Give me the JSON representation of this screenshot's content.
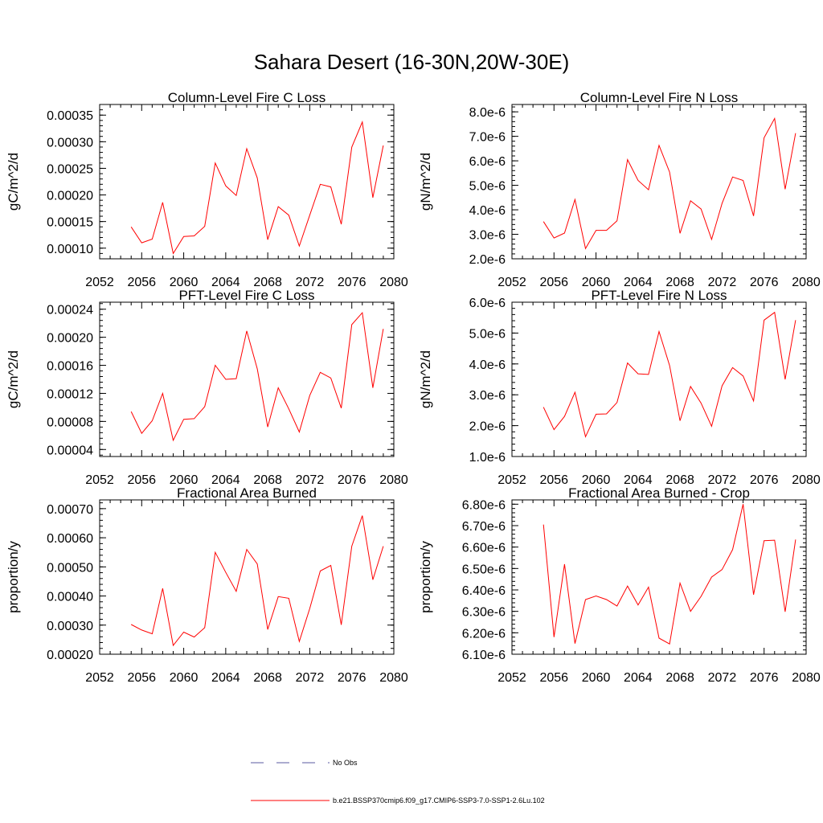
{
  "title": "Sahara Desert (16-30N,20W-30E)",
  "colors": {
    "series": "#ff0000",
    "obs": "#5a5aa0",
    "axis": "#000000"
  },
  "legend": [
    {
      "label": "No Obs",
      "style": "dashed",
      "color": "#5a5aa0"
    },
    {
      "label": "b.e21.BSSP370cmip6.f09_g17.CMIP6-SSP3-7.0-SSP1-2.6Lu.102",
      "style": "solid",
      "color": "#ff0000"
    }
  ],
  "chart_data": [
    {
      "type": "line",
      "title": "Column-Level Fire C Loss",
      "ylabel": "gC/m^2/d",
      "xlim": [
        2052,
        2080
      ],
      "ylim": [
        8e-05,
        0.00037
      ],
      "xticks": [
        "2052",
        "2056",
        "2060",
        "2064",
        "2068",
        "2072",
        "2076",
        "2080"
      ],
      "yticks": [
        {
          "v": 0.0001,
          "label": "0.00010"
        },
        {
          "v": 0.00015,
          "label": "0.00015"
        },
        {
          "v": 0.0002,
          "label": "0.00020"
        },
        {
          "v": 0.00025,
          "label": "0.00025"
        },
        {
          "v": 0.0003,
          "label": "0.00030"
        },
        {
          "v": 0.00035,
          "label": "0.00035"
        }
      ],
      "x": [
        2055,
        2056,
        2057,
        2058,
        2059,
        2060,
        2061,
        2062,
        2063,
        2064,
        2065,
        2066,
        2067,
        2068,
        2069,
        2070,
        2071,
        2072,
        2073,
        2074,
        2075,
        2076,
        2077,
        2078,
        2079
      ],
      "y": [
        0.00014,
        0.00011,
        0.000117,
        0.000186,
        9e-05,
        0.000122,
        0.000123,
        0.000141,
        0.00026,
        0.000217,
        0.000199,
        0.000287,
        0.000232,
        0.000116,
        0.000178,
        0.000162,
        0.000104,
        0.000162,
        0.00022,
        0.000215,
        0.000145,
        0.00029,
        0.000337,
        0.000195,
        0.000293
      ]
    },
    {
      "type": "line",
      "title": "Column-Level Fire N Loss",
      "ylabel": "gN/m^2/d",
      "xlim": [
        2052,
        2080
      ],
      "ylim": [
        2e-06,
        8.3e-06
      ],
      "xticks": [
        "2052",
        "2056",
        "2060",
        "2064",
        "2068",
        "2072",
        "2076",
        "2080"
      ],
      "yticks": [
        {
          "v": 2e-06,
          "label": "2.0e-6"
        },
        {
          "v": 3e-06,
          "label": "3.0e-6"
        },
        {
          "v": 4e-06,
          "label": "4.0e-6"
        },
        {
          "v": 5e-06,
          "label": "5.0e-6"
        },
        {
          "v": 6e-06,
          "label": "6.0e-6"
        },
        {
          "v": 7e-06,
          "label": "7.0e-6"
        },
        {
          "v": 8e-06,
          "label": "8.0e-6"
        }
      ],
      "x": [
        2055,
        2056,
        2057,
        2058,
        2059,
        2060,
        2061,
        2062,
        2063,
        2064,
        2065,
        2066,
        2067,
        2068,
        2069,
        2070,
        2071,
        2072,
        2073,
        2074,
        2075,
        2076,
        2077,
        2078,
        2079
      ],
      "y": [
        3.52e-06,
        2.85e-06,
        3.05e-06,
        4.42e-06,
        2.42e-06,
        3.16e-06,
        3.16e-06,
        3.55e-06,
        6.05e-06,
        5.2e-06,
        4.82e-06,
        6.63e-06,
        5.54e-06,
        3.04e-06,
        4.37e-06,
        4.03e-06,
        2.79e-06,
        4.26e-06,
        5.34e-06,
        5.2e-06,
        3.75e-06,
        6.94e-06,
        7.73e-06,
        4.84e-06,
        7.13e-06
      ]
    },
    {
      "type": "line",
      "title": "PFT-Level Fire C Loss",
      "ylabel": "gC/m^2/d",
      "xlim": [
        2052,
        2080
      ],
      "ylim": [
        3e-05,
        0.00025
      ],
      "xticks": [
        "2052",
        "2056",
        "2060",
        "2064",
        "2068",
        "2072",
        "2076",
        "2080"
      ],
      "yticks": [
        {
          "v": 4e-05,
          "label": "0.00004"
        },
        {
          "v": 8e-05,
          "label": "0.00008"
        },
        {
          "v": 0.00012,
          "label": "0.00012"
        },
        {
          "v": 0.00016,
          "label": "0.00016"
        },
        {
          "v": 0.0002,
          "label": "0.00020"
        },
        {
          "v": 0.00024,
          "label": "0.00024"
        }
      ],
      "x": [
        2055,
        2056,
        2057,
        2058,
        2059,
        2060,
        2061,
        2062,
        2063,
        2064,
        2065,
        2066,
        2067,
        2068,
        2069,
        2070,
        2071,
        2072,
        2073,
        2074,
        2075,
        2076,
        2077,
        2078,
        2079
      ],
      "y": [
        9.4e-05,
        6.3e-05,
        8.1e-05,
        0.00012,
        5.3e-05,
        8.3e-05,
        8.4e-05,
        0.000101,
        0.00016,
        0.00014,
        0.000141,
        0.000209,
        0.000155,
        7.2e-05,
        0.000128,
        9.8e-05,
        6.5e-05,
        0.000117,
        0.00015,
        0.000142,
        9.9e-05,
        0.000218,
        0.000235,
        0.000128,
        0.000212
      ]
    },
    {
      "type": "line",
      "title": "PFT-Level Fire N Loss",
      "ylabel": "gN/m^2/d",
      "xlim": [
        2052,
        2080
      ],
      "ylim": [
        1e-06,
        6e-06
      ],
      "xticks": [
        "2052",
        "2056",
        "2060",
        "2064",
        "2068",
        "2072",
        "2076",
        "2080"
      ],
      "yticks": [
        {
          "v": 1e-06,
          "label": "1.0e-6"
        },
        {
          "v": 2e-06,
          "label": "2.0e-6"
        },
        {
          "v": 3e-06,
          "label": "3.0e-6"
        },
        {
          "v": 4e-06,
          "label": "4.0e-6"
        },
        {
          "v": 5e-06,
          "label": "5.0e-6"
        },
        {
          "v": 6e-06,
          "label": "6.0e-6"
        }
      ],
      "x": [
        2055,
        2056,
        2057,
        2058,
        2059,
        2060,
        2061,
        2062,
        2063,
        2064,
        2065,
        2066,
        2067,
        2068,
        2069,
        2070,
        2071,
        2072,
        2073,
        2074,
        2075,
        2076,
        2077,
        2078,
        2079
      ],
      "y": [
        2.6e-06,
        1.87e-06,
        2.3e-06,
        3.08e-06,
        1.64e-06,
        2.37e-06,
        2.38e-06,
        2.75e-06,
        4.03e-06,
        3.68e-06,
        3.66e-06,
        5.05e-06,
        3.95e-06,
        2.16e-06,
        3.27e-06,
        2.73e-06,
        1.98e-06,
        3.29e-06,
        3.88e-06,
        3.61e-06,
        2.8e-06,
        5.42e-06,
        5.67e-06,
        3.5e-06,
        5.42e-06
      ]
    },
    {
      "type": "line",
      "title": "Fractional Area Burned",
      "ylabel": "proportion/y",
      "xlim": [
        2052,
        2080
      ],
      "ylim": [
        0.0002,
        0.00073
      ],
      "xticks": [
        "2052",
        "2056",
        "2060",
        "2064",
        "2068",
        "2072",
        "2076",
        "2080"
      ],
      "yticks": [
        {
          "v": 0.0002,
          "label": "0.00020"
        },
        {
          "v": 0.0003,
          "label": "0.00030"
        },
        {
          "v": 0.0004,
          "label": "0.00040"
        },
        {
          "v": 0.0005,
          "label": "0.00050"
        },
        {
          "v": 0.0006,
          "label": "0.00060"
        },
        {
          "v": 0.0007,
          "label": "0.00070"
        }
      ],
      "x": [
        2055,
        2056,
        2057,
        2058,
        2059,
        2060,
        2061,
        2062,
        2063,
        2064,
        2065,
        2066,
        2067,
        2068,
        2069,
        2070,
        2071,
        2072,
        2073,
        2074,
        2075,
        2076,
        2077,
        2078,
        2079
      ],
      "y": [
        0.000302,
        0.000283,
        0.00027,
        0.000426,
        0.00023,
        0.000276,
        0.000259,
        0.000291,
        0.00055,
        0.000481,
        0.000416,
        0.00056,
        0.00051,
        0.000285,
        0.000398,
        0.000392,
        0.000244,
        0.000357,
        0.000486,
        0.000505,
        0.000301,
        0.000571,
        0.000676,
        0.000456,
        0.000571
      ]
    },
    {
      "type": "line",
      "title": "Fractional Area Burned - Crop",
      "ylabel": "proportion/y",
      "xlim": [
        2052,
        2080
      ],
      "ylim": [
        6.1e-06,
        6.82e-06
      ],
      "xticks": [
        "2052",
        "2056",
        "2060",
        "2064",
        "2068",
        "2072",
        "2076",
        "2080"
      ],
      "yticks": [
        {
          "v": 6.1e-06,
          "label": "6.10e-6"
        },
        {
          "v": 6.2e-06,
          "label": "6.20e-6"
        },
        {
          "v": 6.3e-06,
          "label": "6.30e-6"
        },
        {
          "v": 6.4e-06,
          "label": "6.40e-6"
        },
        {
          "v": 6.5e-06,
          "label": "6.50e-6"
        },
        {
          "v": 6.6e-06,
          "label": "6.60e-6"
        },
        {
          "v": 6.7e-06,
          "label": "6.70e-6"
        },
        {
          "v": 6.8e-06,
          "label": "6.80e-6"
        }
      ],
      "x": [
        2055,
        2056,
        2057,
        2058,
        2059,
        2060,
        2061,
        2062,
        2063,
        2064,
        2065,
        2066,
        2067,
        2068,
        2069,
        2070,
        2071,
        2072,
        2073,
        2074,
        2075,
        2076,
        2077,
        2078,
        2079
      ],
      "y": [
        6.705e-06,
        6.18e-06,
        6.52e-06,
        6.15e-06,
        6.355e-06,
        6.372e-06,
        6.355e-06,
        6.325e-06,
        6.418e-06,
        6.33e-06,
        6.413e-06,
        6.175e-06,
        6.148e-06,
        6.432e-06,
        6.3e-06,
        6.37e-06,
        6.46e-06,
        6.495e-06,
        6.588e-06,
        6.8e-06,
        6.378e-06,
        6.63e-06,
        6.632e-06,
        6.298e-06,
        6.635e-06
      ]
    }
  ]
}
